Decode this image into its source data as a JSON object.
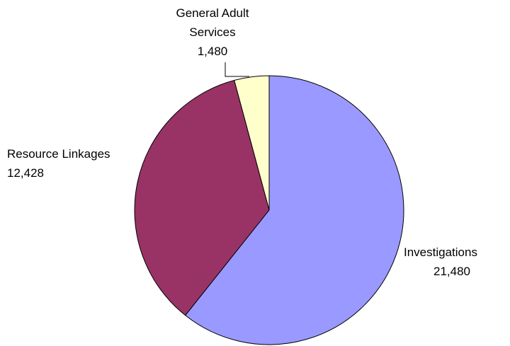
{
  "chart_data": {
    "type": "pie",
    "categories": [
      "Investigations",
      "Resource Linkages",
      "General Adult Services"
    ],
    "values": [
      21480,
      12428,
      1480
    ],
    "value_labels": [
      "21,480",
      "12,428",
      "1,480"
    ],
    "colors": [
      "#9999ff",
      "#993366",
      "#ffffcc"
    ]
  }
}
